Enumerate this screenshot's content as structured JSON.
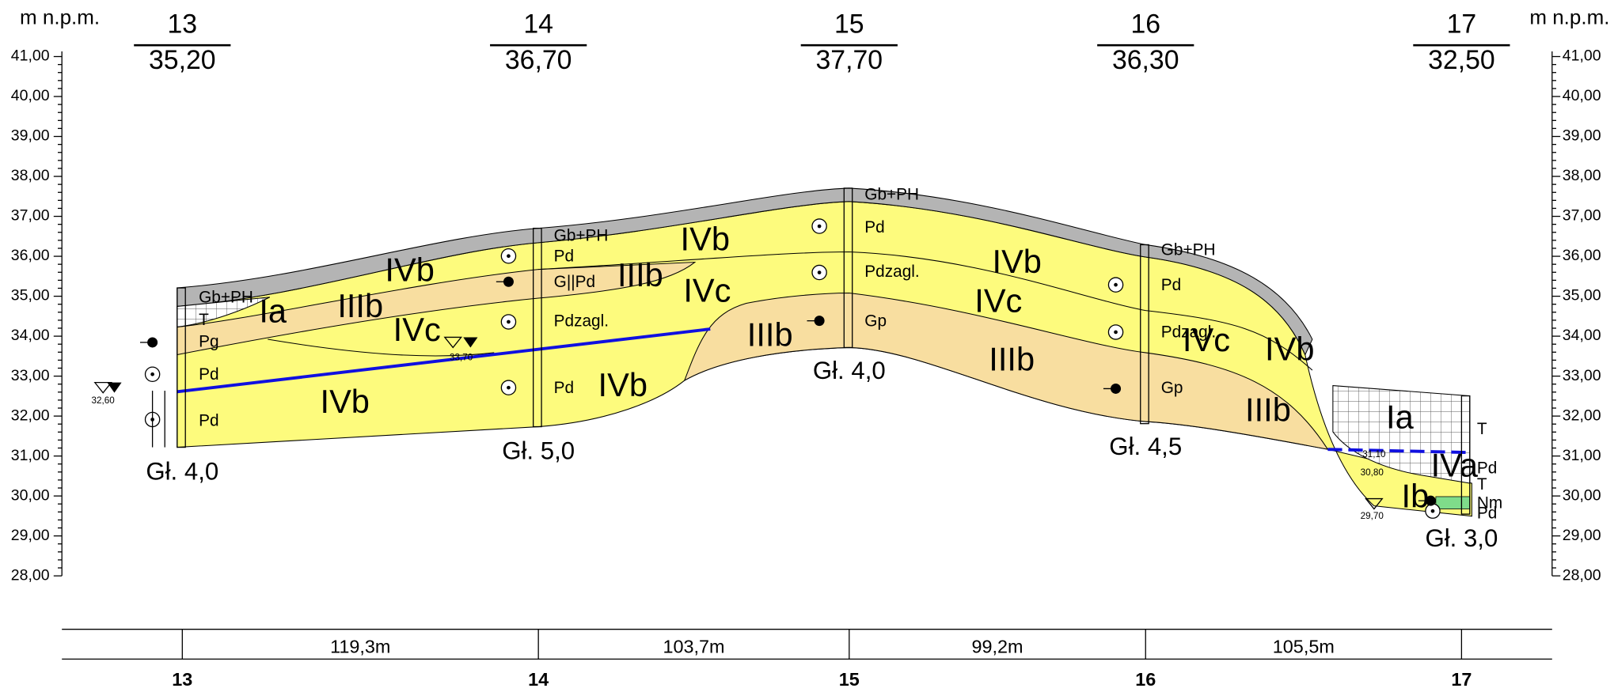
{
  "axis": {
    "unit_left": "m n.p.m.",
    "unit_right": "m n.p.m.",
    "ticks": [
      "41,00",
      "40,00",
      "39,00",
      "38,00",
      "37,00",
      "36,00",
      "35,00",
      "34,00",
      "33,00",
      "32,00",
      "31,00",
      "30,00",
      "29,00",
      "28,00"
    ]
  },
  "boreholes": [
    {
      "number": "13",
      "elevation": "35,20",
      "depth": "Gł. 4,0",
      "soils": [
        "Gb+PH",
        "T",
        "Pg",
        "Pd",
        "Pd"
      ]
    },
    {
      "number": "14",
      "elevation": "36,70",
      "depth": "Gł. 5,0",
      "soils": [
        "Gb+PH",
        "Pd",
        "G||Pd",
        "Pdzagl.",
        "Pd"
      ]
    },
    {
      "number": "15",
      "elevation": "37,70",
      "depth": "Gł. 4,0",
      "soils": [
        "Gb+PH",
        "Pd",
        "Pdzagl.",
        "Gp"
      ]
    },
    {
      "number": "16",
      "elevation": "36,30",
      "depth": "Gł. 4,5",
      "soils": [
        "Gb+PH",
        "Pd",
        "Pdzagl.",
        "Gp"
      ]
    },
    {
      "number": "17",
      "elevation": "32,50",
      "depth": "Gł. 3,0",
      "soils": [
        "T",
        "Pd",
        "T",
        "Nm",
        "Pd"
      ]
    }
  ],
  "layers": [
    "Ia",
    "IIIb",
    "IVb",
    "IVc",
    "IVb",
    "IIIb",
    "IVb",
    "IVc",
    "IVb",
    "IIIb",
    "IVb",
    "IVc",
    "IIIb",
    "IVc",
    "IVb",
    "IIIb",
    "Ia",
    "IVa",
    "Ib"
  ],
  "water_levels": [
    "32,60",
    "33,70",
    "31,10",
    "30,80",
    "29,70"
  ],
  "distances": [
    "119,3m",
    "103,7m",
    "99,2m",
    "105,5m"
  ]
}
